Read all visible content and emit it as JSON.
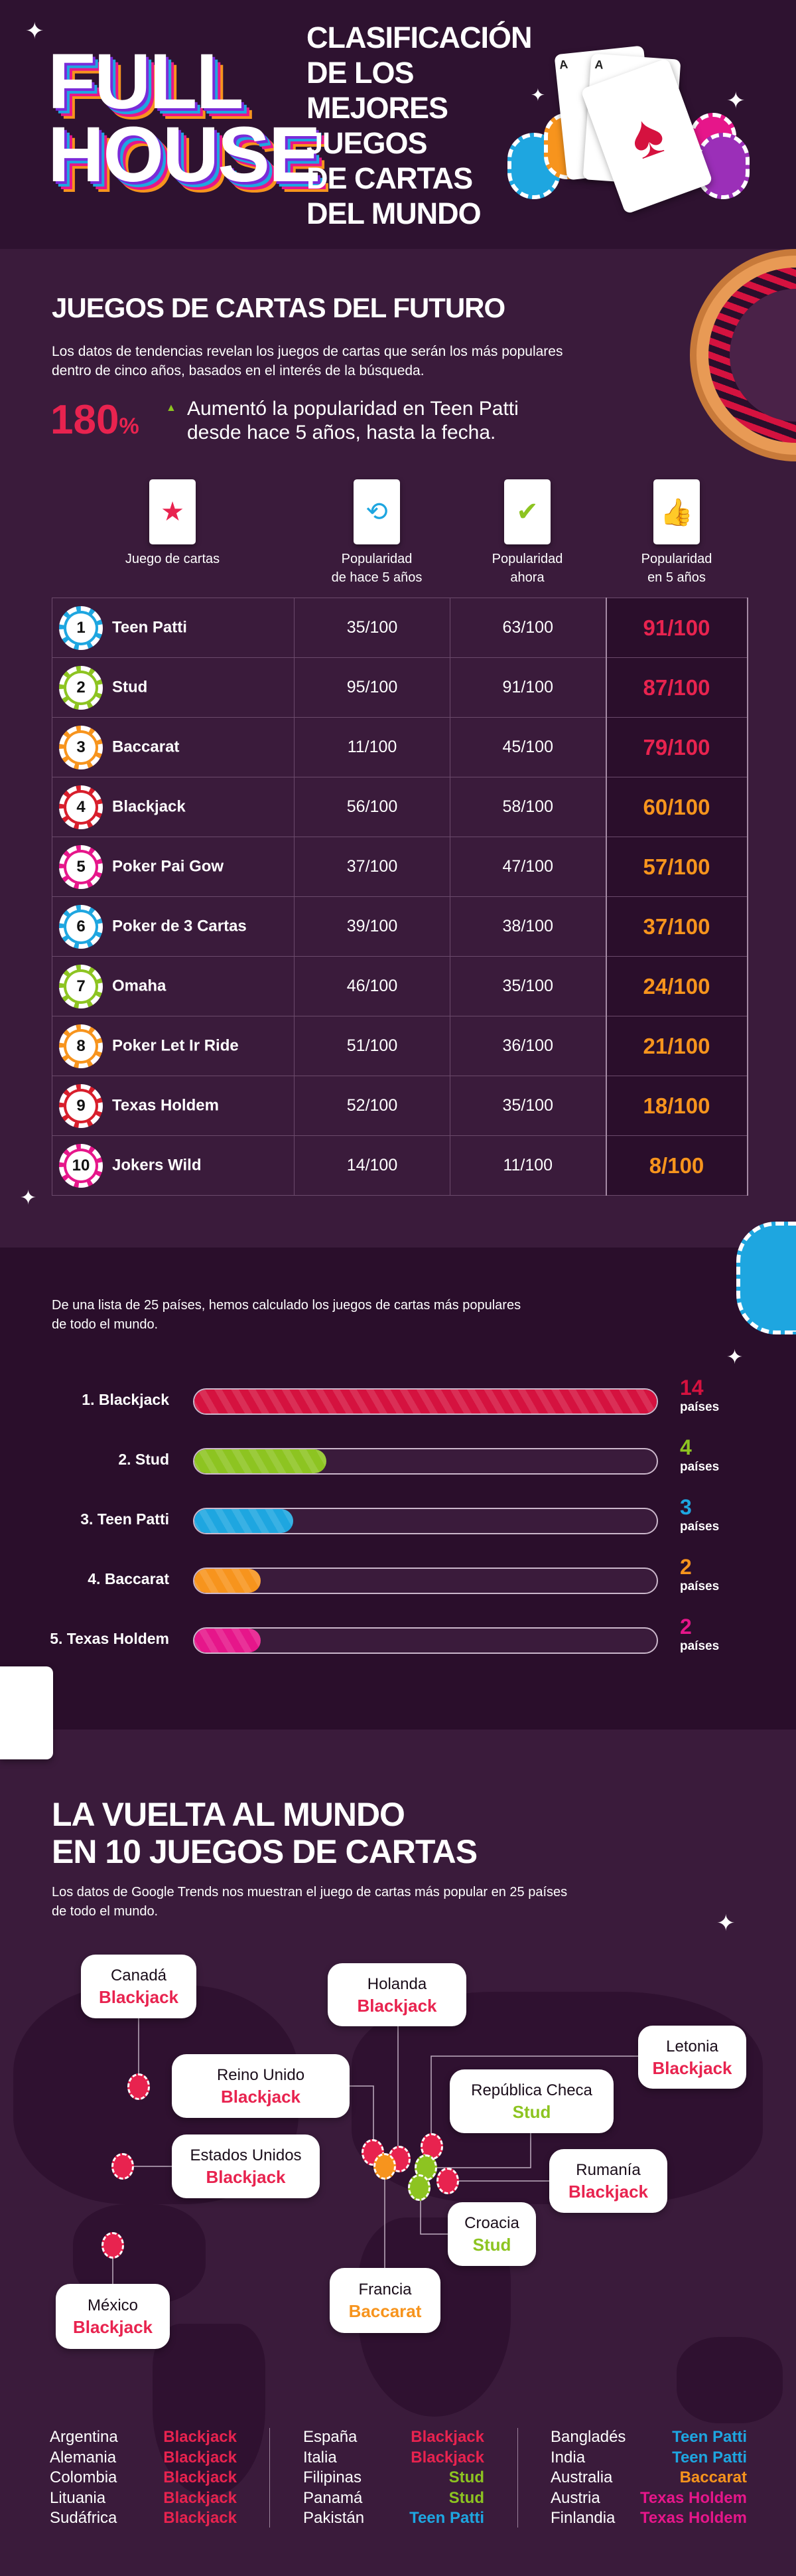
{
  "header": {
    "logo_line1": "FULL",
    "logo_line2": "HOUSE",
    "title_lines": [
      "CLASIFICACIÓN",
      "DE LOS",
      "MEJORES",
      "JUEGOS",
      "DE CARTAS",
      "DEL MUNDO"
    ],
    "card_rank": "A"
  },
  "future": {
    "title": "JUEGOS DE CARTAS DEL FUTURO",
    "description_line1": "Los datos de tendencias revelan los juegos de cartas que serán los más populares",
    "description_line2": "dentro de cinco años, basados en el interés de la búsqueda.",
    "stat_value": "180",
    "stat_unit": "%",
    "stat_text_line1": "Aumentó la popularidad en Teen Patti",
    "stat_text_line2": "desde hace 5 años, hasta la fecha.",
    "columns": [
      {
        "line1": "Juego de cartas",
        "line2": "",
        "icon": "star-icon",
        "color": "#e8234f"
      },
      {
        "line1": "Popularidad",
        "line2": "de hace 5 años",
        "icon": "history-clock-icon",
        "color": "#1ea6e0"
      },
      {
        "line1": "Popularidad",
        "line2": "ahora",
        "icon": "check-circle-icon",
        "color": "#8dc421"
      },
      {
        "line1": "Popularidad",
        "line2": "en 5 años",
        "icon": "thumbs-up-icon",
        "color": "#e6168a"
      }
    ],
    "rows": [
      {
        "rank": "1",
        "name": "Teen Patti",
        "past": "35/100",
        "now": "63/100",
        "future": "91/100",
        "chip_color": "#1ea6e0",
        "future_color": "#e8234f"
      },
      {
        "rank": "2",
        "name": "Stud",
        "past": "95/100",
        "now": "91/100",
        "future": "87/100",
        "chip_color": "#8dc421",
        "future_color": "#e8234f"
      },
      {
        "rank": "3",
        "name": "Baccarat",
        "past": "11/100",
        "now": "45/100",
        "future": "79/100",
        "chip_color": "#f7941d",
        "future_color": "#e8234f"
      },
      {
        "rank": "4",
        "name": "Blackjack",
        "past": "56/100",
        "now": "58/100",
        "future": "60/100",
        "chip_color": "#d81e2c",
        "future_color": "#f7941d"
      },
      {
        "rank": "5",
        "name": "Poker Pai Gow",
        "past": "37/100",
        "now": "47/100",
        "future": "57/100",
        "chip_color": "#e6168a",
        "future_color": "#f7941d"
      },
      {
        "rank": "6",
        "name": "Poker de 3 Cartas",
        "past": "39/100",
        "now": "38/100",
        "future": "37/100",
        "chip_color": "#1ea6e0",
        "future_color": "#f7941d"
      },
      {
        "rank": "7",
        "name": "Omaha",
        "past": "46/100",
        "now": "35/100",
        "future": "24/100",
        "chip_color": "#8dc421",
        "future_color": "#f7941d"
      },
      {
        "rank": "8",
        "name": "Poker Let Ir Ride",
        "past": "51/100",
        "now": "36/100",
        "future": "21/100",
        "chip_color": "#f7941d",
        "future_color": "#f7941d"
      },
      {
        "rank": "9",
        "name": "Texas Holdem",
        "past": "52/100",
        "now": "35/100",
        "future": "18/100",
        "chip_color": "#d81e2c",
        "future_color": "#f7941d"
      },
      {
        "rank": "10",
        "name": "Jokers Wild",
        "past": "14/100",
        "now": "11/100",
        "future": "8/100",
        "chip_color": "#e6168a",
        "future_color": "#f7941d"
      }
    ]
  },
  "countries": {
    "description_line1": "De una lista de 25 países, hemos calculado los juegos de cartas más populares",
    "description_line2": "de todo el mundo.",
    "max_value": 14,
    "bars": [
      {
        "label": "1. Blackjack",
        "value": 14,
        "value_text": "14",
        "unit": "países",
        "color": "#d5123f"
      },
      {
        "label": "2. Stud",
        "value": 4,
        "value_text": "4",
        "unit": "países",
        "color": "#8dc421"
      },
      {
        "label": "3. Teen Patti",
        "value": 3,
        "value_text": "3",
        "unit": "países",
        "color": "#1ea6e0"
      },
      {
        "label": "4. Baccarat",
        "value": 2,
        "value_text": "2",
        "unit": "países",
        "color": "#f7941d"
      },
      {
        "label": "5. Texas Holdem",
        "value": 2,
        "value_text": "2",
        "unit": "países",
        "color": "#e6168a"
      }
    ]
  },
  "world": {
    "title_line1": "LA VUELTA AL MUNDO",
    "title_line2": "EN 10 JUEGOS DE CARTAS",
    "description_line1": "Los datos de Google Trends nos muestran el juego de cartas más popular en 25 países",
    "description_line2": "de todo el mundo.",
    "map_labels": [
      {
        "country": "Canadá",
        "game": "Blackjack",
        "color": "#e8234f"
      },
      {
        "country": "Holanda",
        "game": "Blackjack",
        "color": "#e8234f"
      },
      {
        "country": "Reino Unido",
        "game": "Blackjack",
        "color": "#e8234f"
      },
      {
        "country": "Letonia",
        "game": "Blackjack",
        "color": "#e8234f"
      },
      {
        "country": "República Checa",
        "game": "Stud",
        "color": "#8dc421"
      },
      {
        "country": "Estados Unidos",
        "game": "Blackjack",
        "color": "#e8234f"
      },
      {
        "country": "Rumanía",
        "game": "Blackjack",
        "color": "#e8234f"
      },
      {
        "country": "Croacia",
        "game": "Stud",
        "color": "#8dc421"
      },
      {
        "country": "Francia",
        "game": "Baccarat",
        "color": "#f7941d"
      },
      {
        "country": "México",
        "game": "Blackjack",
        "color": "#e8234f"
      }
    ],
    "list_columns": [
      [
        {
          "country": "Argentina",
          "game": "Blackjack",
          "color": "#e8234f"
        },
        {
          "country": "Alemania",
          "game": "Blackjack",
          "color": "#e8234f"
        },
        {
          "country": "Colombia",
          "game": "Blackjack",
          "color": "#e8234f"
        },
        {
          "country": "Lituania",
          "game": "Blackjack",
          "color": "#e8234f"
        },
        {
          "country": "Sudáfrica",
          "game": "Blackjack",
          "color": "#e8234f"
        }
      ],
      [
        {
          "country": "España",
          "game": "Blackjack",
          "color": "#e8234f"
        },
        {
          "country": "Italia",
          "game": "Blackjack",
          "color": "#e8234f"
        },
        {
          "country": "Filipinas",
          "game": "Stud",
          "color": "#8dc421"
        },
        {
          "country": "Panamá",
          "game": "Stud",
          "color": "#8dc421"
        },
        {
          "country": "Pakistán",
          "game": "Teen Patti",
          "color": "#1ea6e0"
        }
      ],
      [
        {
          "country": "Bangladés",
          "game": "Teen Patti",
          "color": "#1ea6e0"
        },
        {
          "country": "India",
          "game": "Teen Patti",
          "color": "#1ea6e0"
        },
        {
          "country": "Australia",
          "game": "Baccarat",
          "color": "#f7941d"
        },
        {
          "country": "Austria",
          "game": "Texas Holdem",
          "color": "#e6168a"
        },
        {
          "country": "Finlandia",
          "game": "Texas Holdem",
          "color": "#e6168a"
        }
      ]
    ]
  }
}
